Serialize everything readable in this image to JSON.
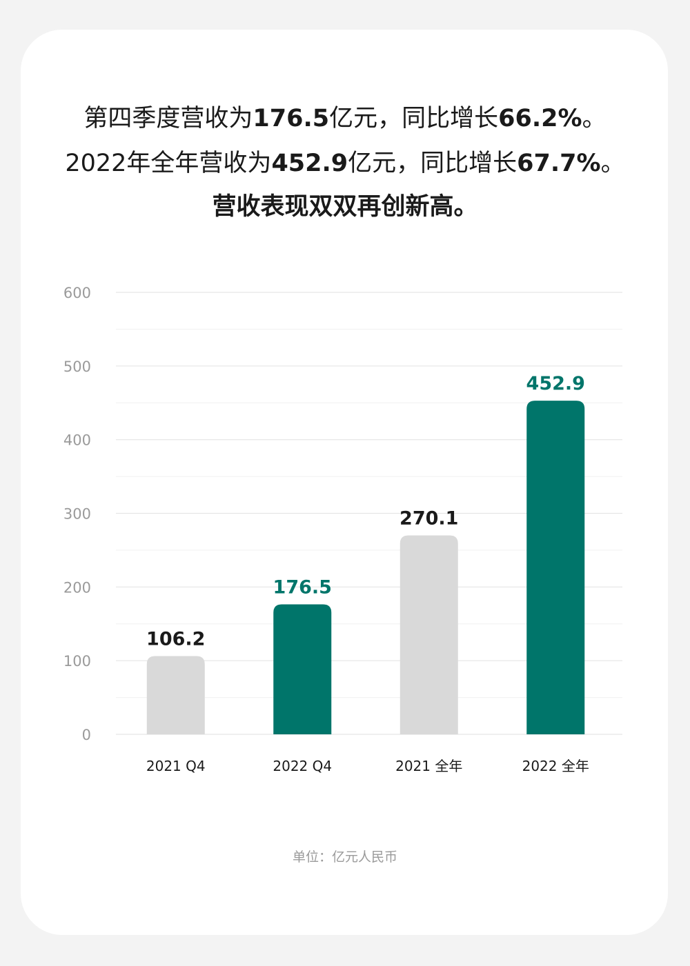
{
  "headline": {
    "line1": {
      "pre": "第四季度营收为",
      "v1": "176.5",
      "mid": "亿元，同比增长",
      "v2": "66.2%",
      "post": "。"
    },
    "line2": {
      "pre": "2022年全年营收为",
      "v1": "452.9",
      "mid": "亿元，同比增长",
      "v2": "67.7%",
      "post": "。"
    },
    "line3": "营收表现双双再创新高。"
  },
  "unit_note": "单位：亿元人民币",
  "colors": {
    "highlight": "#00756a",
    "muted": "#d9d9d9",
    "label_dark": "#1a1a1a",
    "axis_text": "#9a9a9a",
    "grid": "#e5e5e5"
  },
  "chart_data": {
    "type": "bar",
    "categories": [
      "2021 Q4",
      "2022 Q4",
      "2021 全年",
      "2022 全年"
    ],
    "values": [
      106.2,
      176.5,
      270.1,
      452.9
    ],
    "value_labels": [
      "106.2",
      "176.5",
      "270.1",
      "452.9"
    ],
    "highlighted": [
      false,
      true,
      false,
      true
    ],
    "yticks": [
      "0",
      "100",
      "200",
      "300",
      "400",
      "500",
      "600"
    ],
    "ylim": [
      0,
      600
    ],
    "grid": true
  }
}
